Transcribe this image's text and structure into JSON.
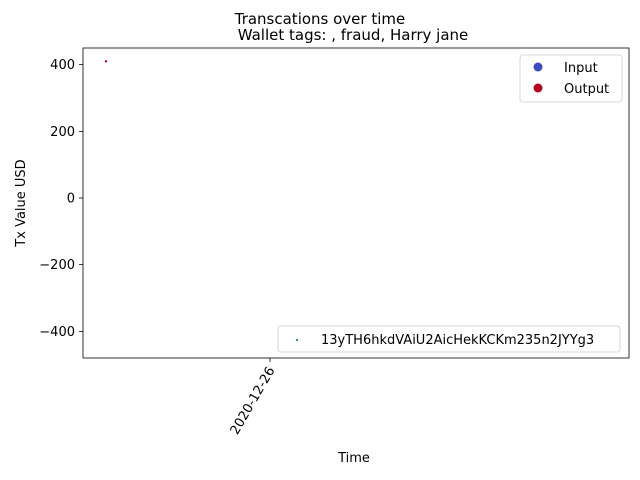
{
  "chart_data": {
    "type": "scatter",
    "title": "Transcations over time",
    "subtitle": "Wallet tags: , fraud, Harry jane",
    "xlabel": "Time",
    "ylabel": "Tx Value USD",
    "x_ticks": [
      "2020-12-26"
    ],
    "y_ticks": [
      -400,
      -200,
      0,
      200,
      400
    ],
    "ylim": [
      -480,
      450
    ],
    "grid": false,
    "series": [
      {
        "name": "Input",
        "color": "#3b4cc0",
        "points": []
      },
      {
        "name": "Output",
        "color": "#b40426",
        "points": [
          {
            "x": "2020-12-24",
            "y": 410
          }
        ]
      },
      {
        "name": "13yTH6hkdVAiU2AicHekKCKm235n2JYYg3",
        "color": "#1a8f7a",
        "points": [
          {
            "x": "2020-12-26",
            "y": -425
          }
        ]
      }
    ],
    "legends": [
      {
        "position": "upper-right",
        "entries": [
          "Input",
          "Output"
        ]
      },
      {
        "position": "lower-right",
        "entries": [
          "13yTH6hkdVAiU2AicHekKCKm235n2JYYg3"
        ]
      }
    ]
  }
}
